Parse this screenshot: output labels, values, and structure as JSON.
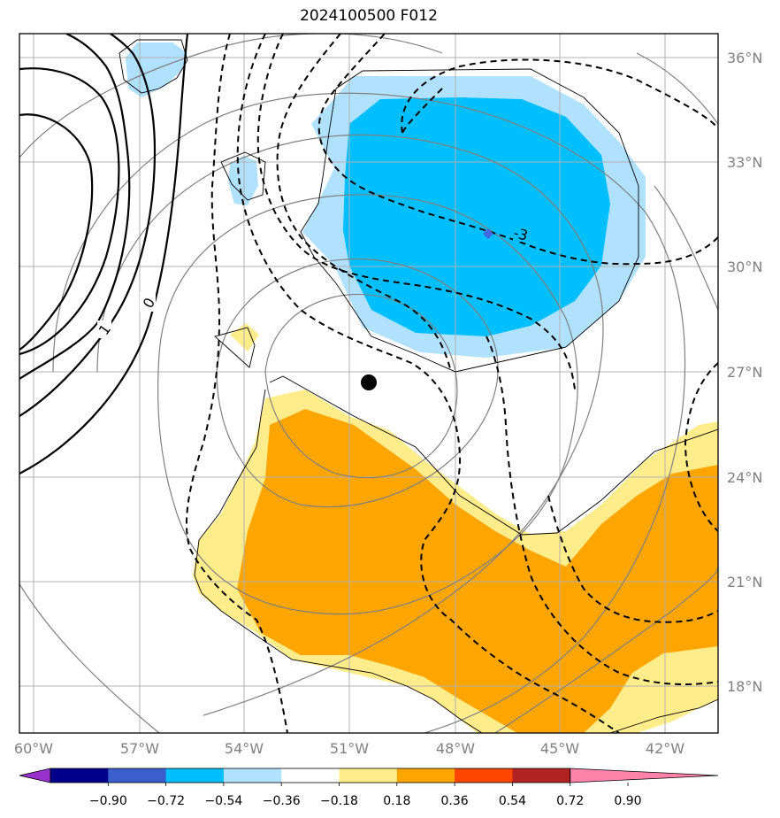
{
  "title": "2024100500 F012",
  "map": {
    "lat_labels": [
      "36°N",
      "33°N",
      "30°N",
      "27°N",
      "24°N",
      "21°N",
      "18°N"
    ],
    "lon_labels": [
      "60°W",
      "57°W",
      "54°W",
      "51°W",
      "48°W",
      "45°W",
      "42°W"
    ],
    "contour_labels": [
      "-3",
      "0",
      "1"
    ],
    "storm_center": {
      "lat": 26.7,
      "lon": -50.6
    }
  },
  "colorbar": {
    "labels": [
      "−0.90",
      "−0.72",
      "−0.54",
      "−0.36",
      "−0.18",
      "0.18",
      "0.36",
      "0.54",
      "0.72",
      "0.90"
    ],
    "colors": [
      "#9932cc",
      "#00008b",
      "#3a5fcd",
      "#00bfff",
      "#b0e2ff",
      "#ffffff",
      "#ffec8b",
      "#ffa500",
      "#ff4500",
      "#b22222",
      "#ff82ab"
    ]
  },
  "palette": {
    "light_blue": "#b0e2ff",
    "blue": "#00bfff",
    "light_yellow": "#ffec8b",
    "orange": "#ffa500",
    "grid": "#b0b0b0",
    "circle": "#808080"
  }
}
